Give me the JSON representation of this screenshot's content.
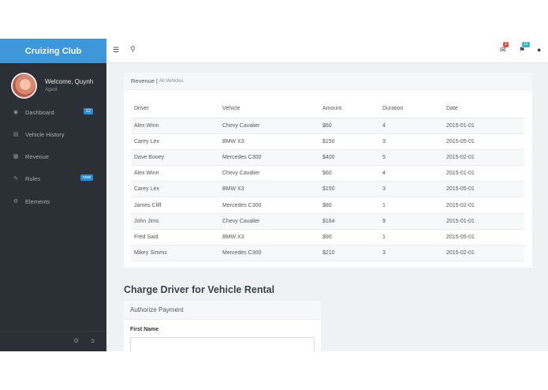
{
  "app": {
    "brand": "Cruizing Club"
  },
  "user": {
    "welcome": "Welcome, Quynh",
    "role": "Agent"
  },
  "sidebar": {
    "items": [
      {
        "label": "Dashboard",
        "icon": "dashboard-icon",
        "badge": "12"
      },
      {
        "label": "Vehicle History",
        "icon": "bar-chart-icon"
      },
      {
        "label": "Revenue",
        "icon": "table-icon"
      },
      {
        "label": "Rules",
        "icon": "edit-icon",
        "badge": "new"
      },
      {
        "label": "Elements",
        "icon": "wrench-icon"
      }
    ]
  },
  "topbar": {
    "mail_count": "3",
    "notification_count": "12"
  },
  "colors": {
    "brand": "#3d97d9",
    "sidebar": "#2b3036",
    "mail_badge": "#e84c3d",
    "notif_badge": "#2fb5c8"
  },
  "revenue": {
    "title": "Revenue",
    "subtitle": "All Vehicles",
    "columns": [
      "Driver",
      "Vehicle",
      "Amount",
      "Duration",
      "Date"
    ],
    "rows": [
      [
        "Alex Winn",
        "Chevy Cavalier",
        "$60",
        "4",
        "2015-01-01"
      ],
      [
        "Carey Lex",
        "BMW X3",
        "$150",
        "3",
        "2015-05-01"
      ],
      [
        "Dave Booey",
        "Mercedes C300",
        "$400",
        "5",
        "2015-02-01"
      ],
      [
        "Alex Winn",
        "Chevy Cavalier",
        "$60",
        "4",
        "2015-01-01"
      ],
      [
        "Carey Lex",
        "BMW X3",
        "$150",
        "3",
        "2015-05-01"
      ],
      [
        "James Cliff",
        "Mercedes C300",
        "$80",
        "1",
        "2015-02-01"
      ],
      [
        "John Jims",
        "Chevy Cavalier",
        "$164",
        "9",
        "2015-01-01"
      ],
      [
        "Fred Said",
        "BMW X3",
        "$90",
        "1",
        "2015-05-01"
      ],
      [
        "Mikey Simms",
        "Mercedes C300",
        "$210",
        "3",
        "2015-02-01"
      ]
    ]
  },
  "charge": {
    "title": "Charge Driver for Vehicle Rental",
    "panel_title": "Authorize Payment",
    "first_name_label": "First Name",
    "first_name_value": ""
  }
}
